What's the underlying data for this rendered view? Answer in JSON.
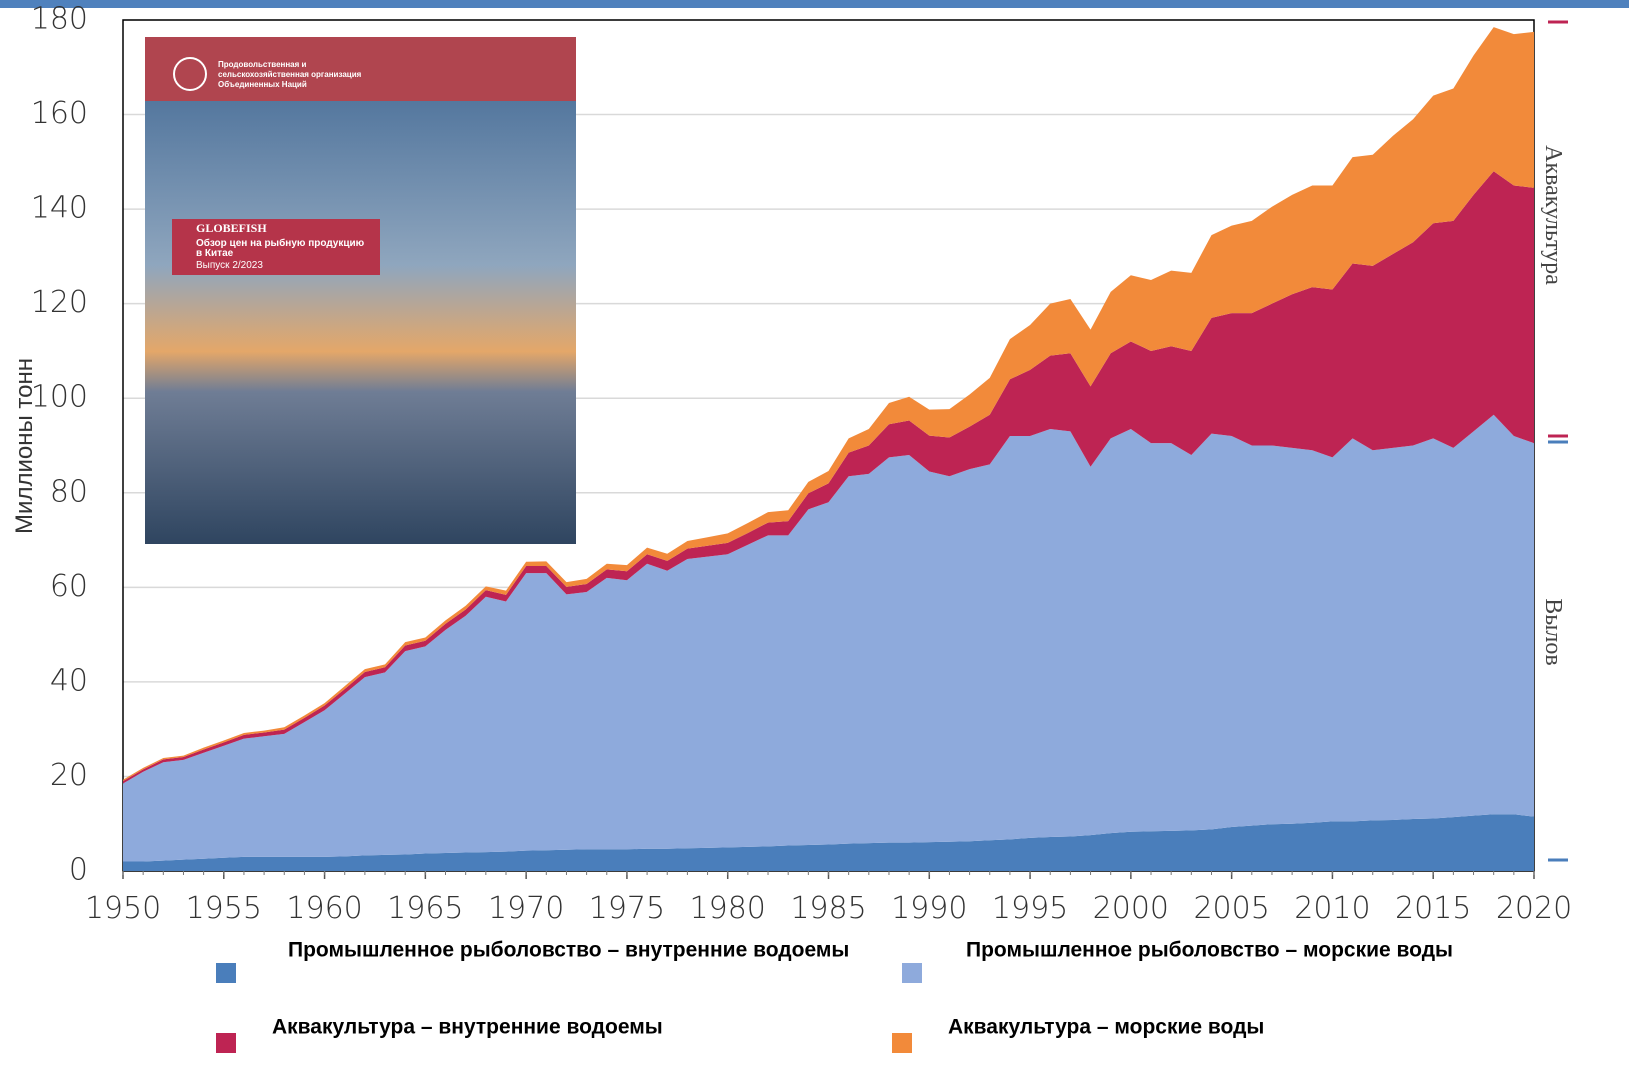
{
  "chart_data": {
    "type": "stacked-area",
    "y_label": "Миллионы тонн",
    "x": [
      1950,
      1951,
      1952,
      1953,
      1954,
      1955,
      1956,
      1957,
      1958,
      1959,
      1960,
      1961,
      1962,
      1963,
      1964,
      1965,
      1966,
      1967,
      1968,
      1969,
      1970,
      1971,
      1972,
      1973,
      1974,
      1975,
      1976,
      1977,
      1978,
      1979,
      1980,
      1981,
      1982,
      1983,
      1984,
      1985,
      1986,
      1987,
      1988,
      1989,
      1990,
      1991,
      1992,
      1993,
      1994,
      1995,
      1996,
      1997,
      1998,
      1999,
      2000,
      2001,
      2002,
      2003,
      2004,
      2005,
      2006,
      2007,
      2008,
      2009,
      2010,
      2011,
      2012,
      2013,
      2014,
      2015,
      2016,
      2017,
      2018,
      2019,
      2020
    ],
    "xlim": [
      1950,
      2020
    ],
    "xticks": [
      1950,
      1955,
      1960,
      1965,
      1970,
      1975,
      1980,
      1985,
      1990,
      1995,
      2000,
      2005,
      2010,
      2015,
      2020
    ],
    "ylim": [
      0,
      180
    ],
    "yticks": [
      0,
      20,
      40,
      60,
      80,
      100,
      120,
      140,
      160,
      180
    ],
    "grid": true,
    "series": [
      {
        "name": "Промышленное рыболовство – внутренние водоемы",
        "color": "#4a7ebb",
        "values": [
          2,
          2,
          2.2,
          2.4,
          2.6,
          2.8,
          3,
          3,
          3,
          3,
          3,
          3.1,
          3.3,
          3.4,
          3.5,
          3.7,
          3.8,
          3.9,
          4,
          4.1,
          4.3,
          4.4,
          4.5,
          4.6,
          4.6,
          4.6,
          4.7,
          4.7,
          4.8,
          4.9,
          5,
          5.1,
          5.2,
          5.4,
          5.5,
          5.6,
          5.8,
          5.9,
          6,
          6,
          6.1,
          6.2,
          6.3,
          6.5,
          6.7,
          7,
          7.2,
          7.3,
          7.6,
          8,
          8.3,
          8.4,
          8.5,
          8.6,
          8.8,
          9.3,
          9.6,
          9.9,
          10,
          10.2,
          10.5,
          10.5,
          10.7,
          10.8,
          11,
          11.1,
          11.4,
          11.7,
          12,
          12,
          11.5
        ]
      },
      {
        "name": "Промышленное рыболовство – морские воды",
        "color": "#8eaadc",
        "values": [
          16.5,
          19,
          20.8,
          21.1,
          22.4,
          23.7,
          25,
          25.5,
          26,
          28.5,
          31,
          34.4,
          37.7,
          38.6,
          43,
          43.8,
          47.2,
          50.1,
          54,
          52.9,
          58.7,
          58.6,
          54,
          54.4,
          57.4,
          56.9,
          60.3,
          58.8,
          61.2,
          61.6,
          62,
          63.9,
          65.8,
          65.6,
          71,
          72.4,
          77.7,
          78.1,
          81.5,
          82,
          78.4,
          77.3,
          78.7,
          79.5,
          85.3,
          85,
          86.3,
          85.7,
          77.9,
          83.5,
          85.2,
          82.1,
          82,
          79.4,
          83.7,
          82.7,
          80.4,
          80.1,
          79.5,
          78.8,
          77,
          81,
          78.3,
          78.7,
          79,
          80.4,
          78.1,
          81.3,
          84.5,
          80,
          79
        ]
      },
      {
        "name": "Аквакультура – внутренние водоемы",
        "color": "#be2453",
        "values": [
          0.5,
          0.5,
          0.6,
          0.6,
          0.7,
          0.7,
          0.8,
          0.8,
          0.9,
          0.9,
          1,
          1,
          1.1,
          1.1,
          1.2,
          1.2,
          1.3,
          1.3,
          1.4,
          1.4,
          1.5,
          1.5,
          1.6,
          1.7,
          1.8,
          1.9,
          2,
          2.1,
          2.2,
          2.3,
          2.4,
          2.5,
          2.7,
          3,
          3.4,
          4,
          5,
          6,
          7,
          7.3,
          7.6,
          8.2,
          9,
          10.5,
          12,
          14,
          15.5,
          16.5,
          17,
          18,
          18.5,
          19.5,
          20.5,
          22,
          24.5,
          26,
          28,
          30,
          32.5,
          34.5,
          35.5,
          37,
          39,
          41,
          43,
          45.5,
          48,
          50,
          51.5,
          53,
          54
        ]
      },
      {
        "name": "Аквакультура – морские воды",
        "color": "#f28a3a",
        "values": [
          0.3,
          0.3,
          0.3,
          0.3,
          0.4,
          0.4,
          0.4,
          0.4,
          0.5,
          0.5,
          0.5,
          0.6,
          0.6,
          0.6,
          0.7,
          0.7,
          0.7,
          0.8,
          0.8,
          0.9,
          0.9,
          1,
          1,
          1.1,
          1.2,
          1.3,
          1.4,
          1.5,
          1.6,
          1.8,
          2,
          2.1,
          2.2,
          2.3,
          2.4,
          2.6,
          3,
          3.5,
          4.5,
          5,
          5.5,
          6,
          6.8,
          7.8,
          8.5,
          9.5,
          11,
          11.5,
          12,
          13,
          14,
          15,
          16,
          16.5,
          17.5,
          18.5,
          19.5,
          20.5,
          21,
          21.5,
          22,
          22.5,
          23.5,
          25,
          26,
          27,
          28,
          29.5,
          30.5,
          32,
          33
        ]
      }
    ],
    "side_labels": [
      "Аквакультура",
      "Вылов"
    ]
  },
  "cover": {
    "org": [
      "Продовольственная и",
      "сельскохозяйственная организация",
      "Объединенных Наций"
    ],
    "series_title": "GLOBEFISH",
    "subtitle": [
      "Обзор цен на рыбную продукцию",
      "в Китае"
    ],
    "issue": "Выпуск 2/2023"
  }
}
